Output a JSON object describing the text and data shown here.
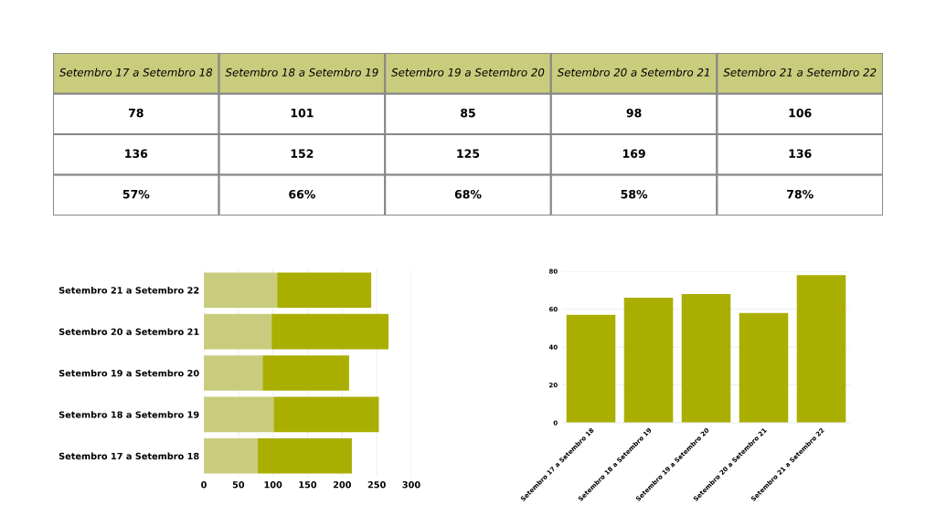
{
  "chart_data": [
    {
      "type": "other",
      "categories": [
        "Setembro 17 a Setembro 18",
        "Setembro 18 a Setembro 19",
        "Setembro 19 a Setembro 20",
        "Setembro 20 a Setembro 21",
        "Setembro 21 a Setembro 22"
      ],
      "data_labels": true,
      "series": [
        {
          "color": "#ffffff",
          "values": [
            78,
            101,
            85,
            98,
            106
          ]
        },
        {
          "color": "#ffffff",
          "values": [
            136,
            152,
            125,
            169,
            136
          ]
        },
        {
          "color": "#ffffff",
          "values": [
            57,
            66,
            68,
            58,
            78
          ],
          "value_labels": [
            "57%",
            "66%",
            "68%",
            "58%",
            "78%"
          ]
        }
      ]
    },
    {
      "type": "bar",
      "orientation": "horizontal",
      "stacked": true,
      "categories": [
        "Setembro 21 a Setembro 22",
        "Setembro 20 a Setembro 21",
        "Setembro 19 a Setembro 20",
        "Setembro 18 a Setembro 19",
        "Setembro 17 a Setembro 18"
      ],
      "series": [
        {
          "color": "#c9cc7c",
          "values": [
            106,
            98,
            85,
            101,
            78
          ]
        },
        {
          "color": "#aaae00",
          "values": [
            136,
            169,
            125,
            152,
            136
          ]
        }
      ],
      "xlim": [
        0,
        300
      ],
      "xticks": [
        0,
        50,
        100,
        150,
        200,
        250,
        300
      ],
      "grid": "x"
    },
    {
      "type": "bar",
      "categories": [
        "Setembro 17 a Setembro 18",
        "Setembro 18 a Setembro 19",
        "Setembro 19 a Setembro 20",
        "Setembro 20 a Setembro 21",
        "Setembro 21 a Setembro 22"
      ],
      "values": [
        57,
        66,
        68,
        58,
        78
      ],
      "color": "#aaae00",
      "ylim": [
        0,
        80
      ],
      "yticks": [
        0,
        20,
        40,
        60,
        80
      ],
      "grid": "y"
    }
  ]
}
